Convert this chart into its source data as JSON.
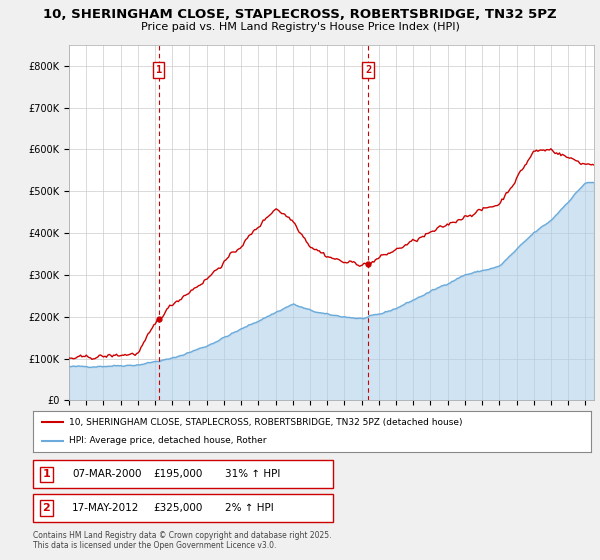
{
  "title": "10, SHERINGHAM CLOSE, STAPLECROSS, ROBERTSBRIDGE, TN32 5PZ",
  "subtitle": "Price paid vs. HM Land Registry's House Price Index (HPI)",
  "background_color": "#f0f0f0",
  "plot_background": "#ffffff",
  "red_line_color": "#cc0000",
  "blue_line_color": "#6aabdb",
  "blue_fill_color": "#aacde8",
  "dashed_line_color": "#cc0000",
  "legend_entry1": "10, SHERINGHAM CLOSE, STAPLECROSS, ROBERTSBRIDGE, TN32 5PZ (detached house)",
  "legend_entry2": "HPI: Average price, detached house, Rother",
  "sale1_date": "07-MAR-2000",
  "sale1_price": "£195,000",
  "sale1_hpi": "31% ↑ HPI",
  "sale1_year": 2000.21,
  "sale1_val": 195000,
  "sale2_date": "17-MAY-2012",
  "sale2_price": "£325,000",
  "sale2_hpi": "2% ↑ HPI",
  "sale2_year": 2012.38,
  "sale2_val": 325000,
  "footnote": "Contains HM Land Registry data © Crown copyright and database right 2025.\nThis data is licensed under the Open Government Licence v3.0.",
  "ylim": [
    0,
    850000
  ],
  "yticks": [
    0,
    100000,
    200000,
    300000,
    400000,
    500000,
    600000,
    700000,
    800000
  ],
  "ytick_labels": [
    "£0",
    "£100K",
    "£200K",
    "£300K",
    "£400K",
    "£500K",
    "£600K",
    "£700K",
    "£800K"
  ],
  "xmin": 1995,
  "xmax": 2025.5
}
